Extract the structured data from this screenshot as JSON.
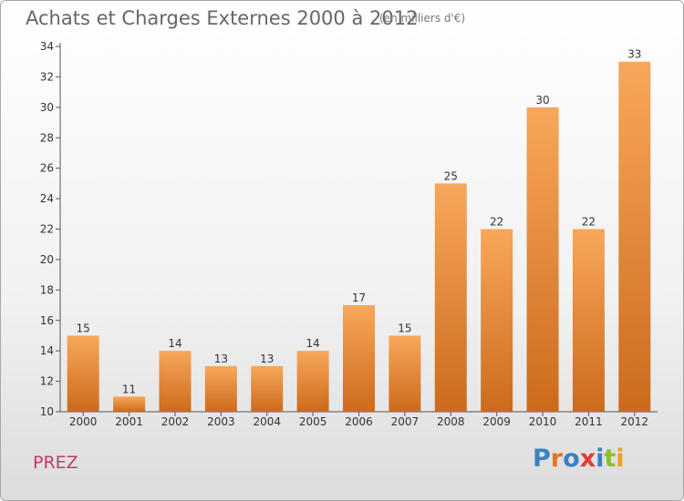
{
  "title": "Achats et Charges Externes 2000 à 2012",
  "unit": "(en milliers d'€)",
  "commune": "PREZ",
  "logo": {
    "text": "Proxiti",
    "letters": [
      {
        "ch": "P",
        "color": "#3a82c4"
      },
      {
        "ch": "r",
        "color": "#e8731c"
      },
      {
        "ch": "o",
        "color": "#3a82c4"
      },
      {
        "ch": "x",
        "color": "#e23a3a"
      },
      {
        "ch": "i",
        "color": "#3a82c4"
      },
      {
        "ch": "t",
        "color": "#8cbf26"
      },
      {
        "ch": "i",
        "color": "#e8a21c"
      }
    ]
  },
  "colors": {
    "bar_top": "#f8a75a",
    "bar_bottom": "#cc6a1c",
    "axis": "#555555",
    "grid": "#cccccc",
    "text": "#333333"
  },
  "chart_data": {
    "type": "bar",
    "categories": [
      "2000",
      "2001",
      "2002",
      "2003",
      "2004",
      "2005",
      "2006",
      "2007",
      "2008",
      "2009",
      "2010",
      "2011",
      "2012"
    ],
    "values": [
      15,
      11,
      14,
      13,
      13,
      14,
      17,
      15,
      25,
      22,
      30,
      22,
      33
    ],
    "yticks": [
      10,
      12,
      14,
      16,
      18,
      20,
      22,
      24,
      26,
      28,
      30,
      32,
      34
    ],
    "ylim": [
      10,
      34
    ],
    "grid": false,
    "data_labels": true
  }
}
